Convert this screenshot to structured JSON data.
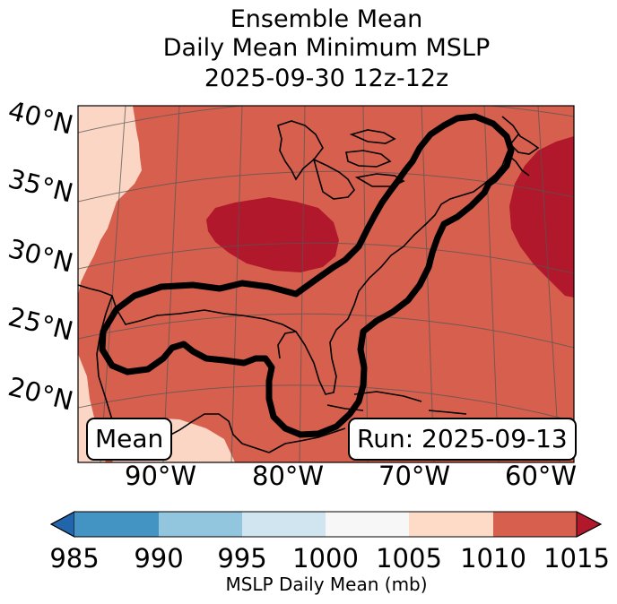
{
  "title": {
    "line1": "Ensemble Mean",
    "line2": "Daily Mean Minimum MSLP",
    "line3": "2025-09-30 12z-12z"
  },
  "map": {
    "lat_labels": [
      "40°N",
      "35°N",
      "30°N",
      "25°N",
      "20°N"
    ],
    "lon_labels": [
      "90°W",
      "80°W",
      "70°W",
      "60°W"
    ],
    "mean_box": "Mean",
    "run_box": "Run: 2025-09-13",
    "fill_colors": {
      "p1005_1010": "#fcd6c4",
      "p1010_1015": "#d6604d",
      "p1015_plus": "#b2182b"
    }
  },
  "colorbar": {
    "label": "MSLP Daily Mean (mb)",
    "ticks": [
      "985",
      "990",
      "995",
      "1000",
      "1005",
      "1010",
      "1015"
    ],
    "colors": [
      "#2166ac",
      "#4393c3",
      "#92c5de",
      "#d1e5f0",
      "#f7f7f7",
      "#fddbc7",
      "#d6604d",
      "#b2182b"
    ]
  }
}
